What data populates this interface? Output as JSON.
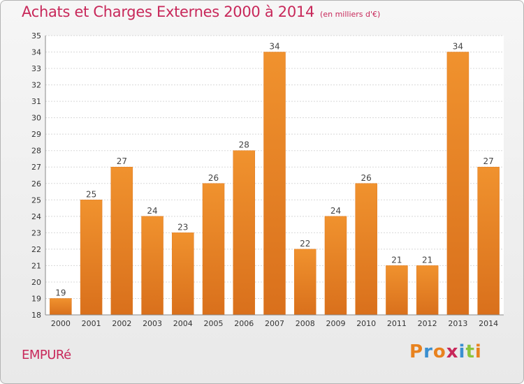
{
  "chart_data": {
    "type": "bar",
    "title": "Achats et Charges Externes 2000 à 2014",
    "subtitle": "(en milliers d'€)",
    "categories": [
      "2000",
      "2001",
      "2002",
      "2003",
      "2004",
      "2005",
      "2006",
      "2007",
      "2008",
      "2009",
      "2010",
      "2011",
      "2012",
      "2013",
      "2014"
    ],
    "values": [
      19,
      25,
      27,
      24,
      23,
      26,
      28,
      34,
      22,
      24,
      26,
      21,
      21,
      34,
      27
    ],
    "ylim": [
      18,
      35
    ],
    "yticks": [
      18,
      19,
      20,
      21,
      22,
      23,
      24,
      25,
      26,
      27,
      28,
      29,
      30,
      31,
      32,
      33,
      34,
      35
    ],
    "grid": true,
    "bar_color": "#f0922e",
    "bar_color_dark": "#d9701c"
  },
  "footer": {
    "commune": "EMPURé",
    "logo": "Proxiti",
    "logo_colors": [
      "#e8821e",
      "#3a8fd0",
      "#e8821e",
      "#c8285a",
      "#3a8fd0",
      "#8cc43c",
      "#e8821e"
    ]
  }
}
